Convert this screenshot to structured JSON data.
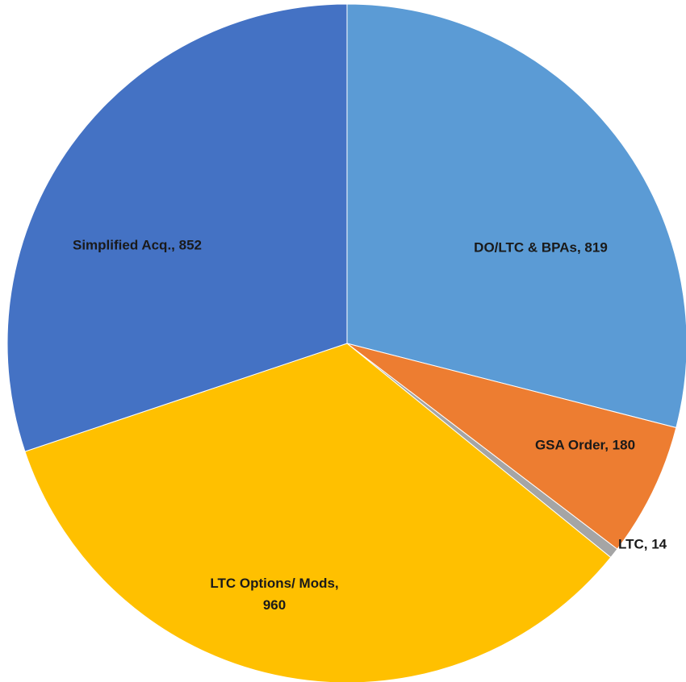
{
  "chart_data": {
    "type": "pie",
    "values": [
      819,
      180,
      14,
      960,
      852
    ],
    "value_labels": [
      "DO/LTC & BPAs, 819",
      "GSA Order, 180",
      "LTC, 14",
      "LTC Options/ Mods, 960",
      "Simplified Acq., 852"
    ],
    "colors": [
      "#5b9bd5",
      "#ed7d31",
      "#a5a5a5",
      "#ffc000",
      "#4472c4"
    ]
  }
}
